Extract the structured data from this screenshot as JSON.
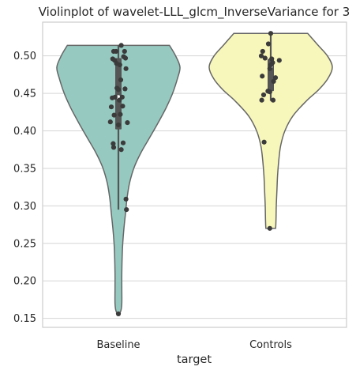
{
  "chart_data": {
    "type": "violin",
    "title": "Violinplot of wavelet-LLL_glcm_InverseVariance for 3",
    "xlabel": "target",
    "ylabel": "",
    "categories": [
      "Baseline",
      "Controls"
    ],
    "ylim": [
      0.138,
      0.545
    ],
    "yticks": [
      0.15,
      0.2,
      0.25,
      0.3,
      0.35,
      0.4,
      0.45,
      0.5
    ],
    "ytick_labels": [
      "0.15",
      "0.20",
      "0.25",
      "0.30",
      "0.35",
      "0.40",
      "0.45",
      "0.50"
    ],
    "grid": true,
    "violins": [
      {
        "category": "Baseline",
        "color": "#96cac1",
        "cut_min": 0.155,
        "cut_max": 0.514,
        "box": {
          "q1": 0.402,
          "median": 0.445,
          "q3": 0.497,
          "whisker_low": 0.295,
          "whisker_high": 0.514
        },
        "density_profile": [
          [
            0.155,
            0.005
          ],
          [
            0.16,
            0.04
          ],
          [
            0.17,
            0.055
          ],
          [
            0.19,
            0.055
          ],
          [
            0.21,
            0.055
          ],
          [
            0.23,
            0.06
          ],
          [
            0.25,
            0.07
          ],
          [
            0.27,
            0.09
          ],
          [
            0.29,
            0.115
          ],
          [
            0.31,
            0.14
          ],
          [
            0.33,
            0.18
          ],
          [
            0.35,
            0.25
          ],
          [
            0.37,
            0.36
          ],
          [
            0.39,
            0.5
          ],
          [
            0.41,
            0.64
          ],
          [
            0.43,
            0.77
          ],
          [
            0.45,
            0.88
          ],
          [
            0.47,
            0.96
          ],
          [
            0.485,
            1.0
          ],
          [
            0.5,
            0.93
          ],
          [
            0.514,
            0.83
          ]
        ],
        "points": [
          [
            -0.1,
            0.506
          ],
          [
            -0.05,
            0.506
          ],
          [
            0.06,
            0.514
          ],
          [
            0.13,
            0.506
          ],
          [
            -0.12,
            0.496
          ],
          [
            -0.08,
            0.494
          ],
          [
            0.11,
            0.499
          ],
          [
            0.15,
            0.497
          ],
          [
            0.03,
            0.488
          ],
          [
            -0.04,
            0.49
          ],
          [
            0.16,
            0.483
          ],
          [
            0.05,
            0.468
          ],
          [
            0.08,
            0.445
          ],
          [
            -0.03,
            0.457
          ],
          [
            0.14,
            0.456
          ],
          [
            0.0,
            0.455
          ],
          [
            -0.07,
            0.445
          ],
          [
            0.02,
            0.441
          ],
          [
            -0.13,
            0.444
          ],
          [
            0.09,
            0.433
          ],
          [
            -0.15,
            0.432
          ],
          [
            -0.09,
            0.421
          ],
          [
            0.04,
            0.422
          ],
          [
            0.19,
            0.411
          ],
          [
            -0.17,
            0.412
          ],
          [
            0.0,
            0.408
          ],
          [
            -0.11,
            0.383
          ],
          [
            0.1,
            0.384
          ],
          [
            -0.1,
            0.378
          ],
          [
            0.06,
            0.375
          ],
          [
            0.16,
            0.309
          ],
          [
            0.17,
            0.295
          ],
          [
            0.0,
            0.156
          ]
        ]
      },
      {
        "category": "Controls",
        "color": "#f8f7bb",
        "cut_min": 0.27,
        "cut_max": 0.53,
        "box": {
          "q1": 0.453,
          "median": 0.486,
          "q3": 0.496,
          "whisker_low": 0.44,
          "whisker_high": 0.53
        },
        "density_profile": [
          [
            0.27,
            0.08
          ],
          [
            0.28,
            0.085
          ],
          [
            0.3,
            0.09
          ],
          [
            0.32,
            0.1
          ],
          [
            0.34,
            0.11
          ],
          [
            0.36,
            0.13
          ],
          [
            0.38,
            0.16
          ],
          [
            0.4,
            0.23
          ],
          [
            0.42,
            0.36
          ],
          [
            0.44,
            0.58
          ],
          [
            0.455,
            0.78
          ],
          [
            0.47,
            0.93
          ],
          [
            0.485,
            1.0
          ],
          [
            0.5,
            0.92
          ],
          [
            0.515,
            0.76
          ],
          [
            0.53,
            0.6
          ]
        ],
        "points": [
          [
            0.0,
            0.53
          ],
          [
            -0.05,
            0.516
          ],
          [
            -0.17,
            0.506
          ],
          [
            -0.2,
            0.5
          ],
          [
            0.02,
            0.496
          ],
          [
            -0.12,
            0.497
          ],
          [
            0.18,
            0.494
          ],
          [
            0.04,
            0.491
          ],
          [
            0.0,
            0.488
          ],
          [
            -0.02,
            0.483
          ],
          [
            0.1,
            0.471
          ],
          [
            -0.18,
            0.473
          ],
          [
            0.06,
            0.466
          ],
          [
            -0.06,
            0.453
          ],
          [
            -0.02,
            0.452
          ],
          [
            -0.15,
            0.448
          ],
          [
            -0.19,
            0.441
          ],
          [
            0.05,
            0.441
          ],
          [
            -0.14,
            0.385
          ],
          [
            -0.02,
            0.27
          ]
        ]
      }
    ]
  }
}
